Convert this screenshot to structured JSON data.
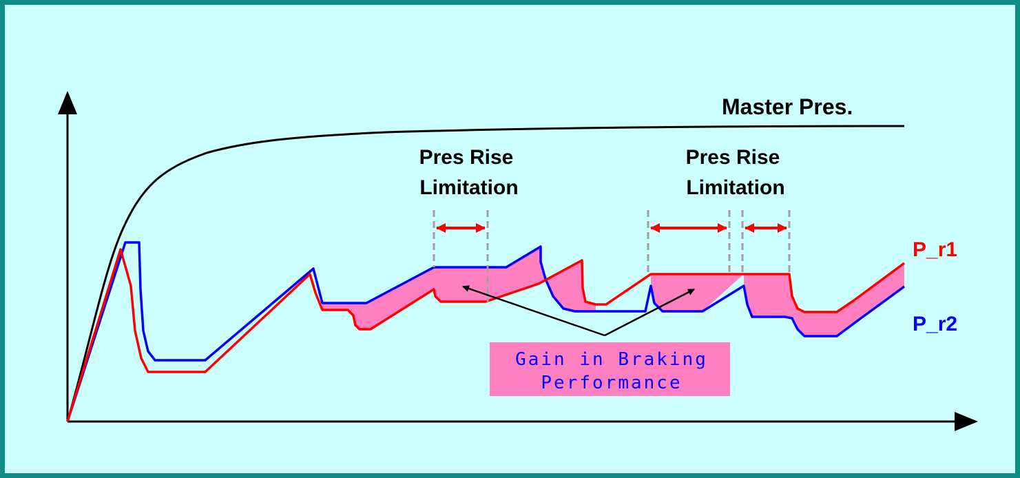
{
  "labels": {
    "master": "Master Pres.",
    "pr1": "P_r1",
    "pr2": "P_r2",
    "rise1_line1": "Pres Rise",
    "rise1_line2": "Limitation",
    "rise2_line1": "Pres Rise",
    "rise2_line2": "Limitation",
    "gain_line1": "Gain in Braking",
    "gain_line2": "Performance"
  },
  "colors": {
    "frame": "#0f8c83",
    "background": "#ccffff",
    "master": "#000000",
    "pr1": "#ff0000",
    "pr2": "#0000ff",
    "gain_fill": "#ff80c0",
    "guide": "#a0a0a0"
  }
}
